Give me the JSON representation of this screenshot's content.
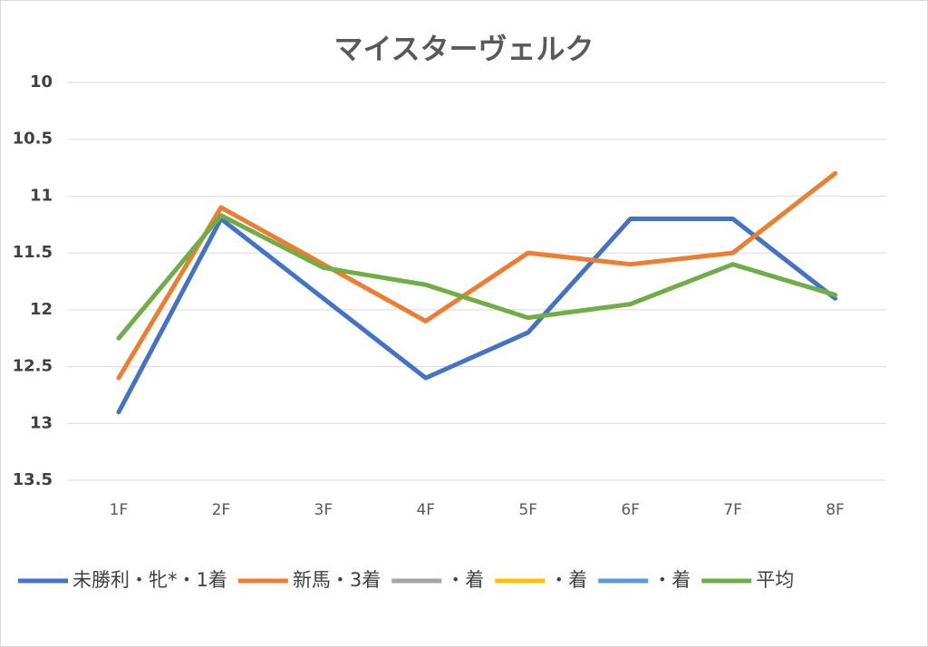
{
  "chart_data": {
    "type": "line",
    "title": "マイスターヴェルク",
    "categories": [
      "1F",
      "2F",
      "3F",
      "4F",
      "5F",
      "6F",
      "7F",
      "8F"
    ],
    "series": [
      {
        "name": "未勝利・牝*・1着",
        "color": "#4472c4",
        "values": [
          12.9,
          11.2,
          11.9,
          12.6,
          12.2,
          11.2,
          11.2,
          11.9
        ]
      },
      {
        "name": "新馬・3着",
        "color": "#ed7d31",
        "values": [
          12.6,
          11.1,
          11.6,
          12.1,
          11.5,
          11.6,
          11.5,
          10.8
        ]
      },
      {
        "name": "・着",
        "color": "#a5a5a5",
        "values": [
          null,
          null,
          null,
          null,
          null,
          null,
          null,
          null
        ]
      },
      {
        "name": "・着",
        "color": "#ffc000",
        "values": [
          null,
          null,
          null,
          null,
          null,
          null,
          null,
          null
        ]
      },
      {
        "name": "・着",
        "color": "#5b9bd5",
        "values": [
          null,
          null,
          null,
          null,
          null,
          null,
          null,
          null
        ]
      },
      {
        "name": "平均",
        "color": "#70ad47",
        "values": [
          12.25,
          11.17,
          11.63,
          11.78,
          12.07,
          11.95,
          11.6,
          11.87
        ]
      }
    ],
    "ylim": [
      10,
      13.5
    ],
    "inverted": true,
    "yticks": [
      10,
      10.5,
      11,
      11.5,
      12,
      12.5,
      13,
      13.5
    ],
    "grid": true,
    "legend": "bottom"
  }
}
